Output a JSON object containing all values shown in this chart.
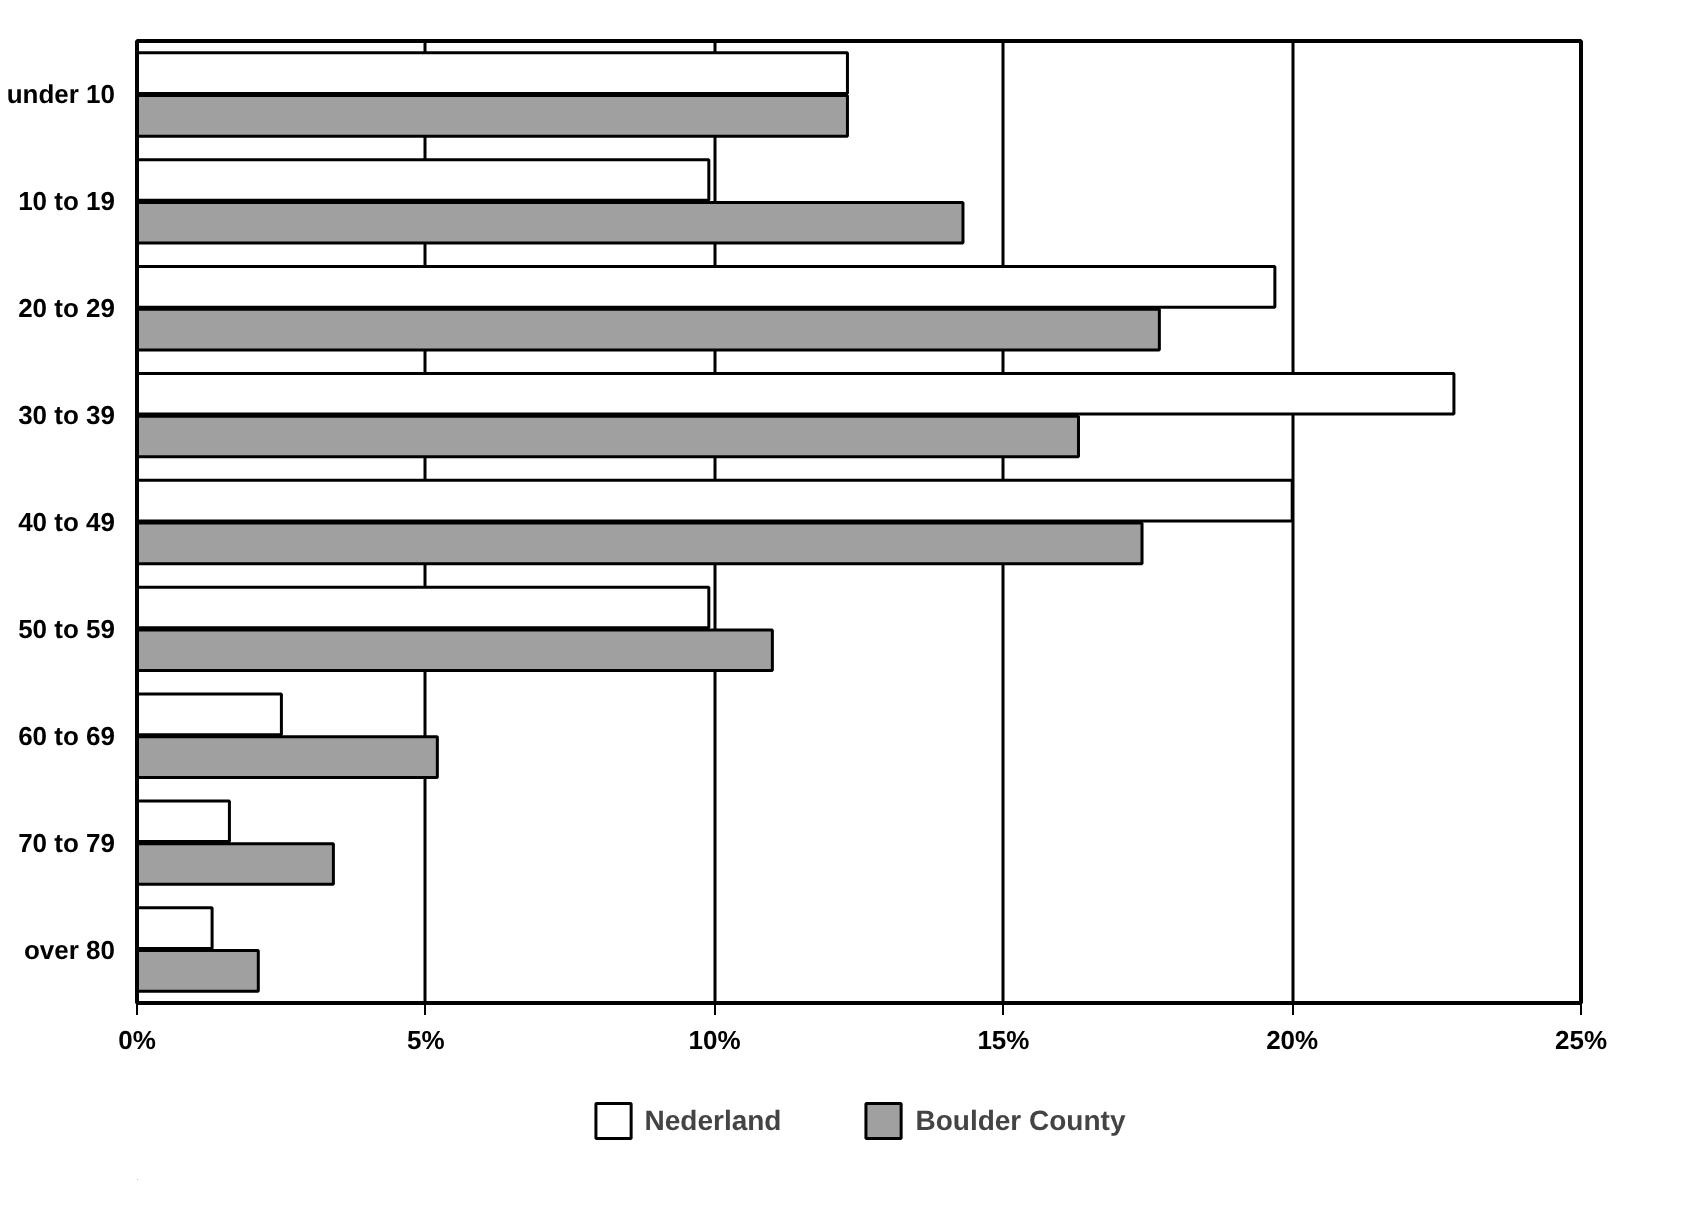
{
  "chart_data": {
    "type": "bar",
    "orientation": "horizontal",
    "categories": [
      "under 10",
      "10 to 19",
      "20 to 29",
      "30 to 39",
      "40 to 49",
      "50 to 59",
      "60 to 69",
      "70 to 79",
      "over 80"
    ],
    "series": [
      {
        "name": "Nederland",
        "color": "#ffffff",
        "values": [
          12.3,
          9.9,
          19.7,
          22.8,
          20.0,
          9.9,
          2.5,
          1.6,
          1.3
        ]
      },
      {
        "name": "Boulder County",
        "color": "#a0a0a0",
        "values": [
          12.3,
          14.3,
          17.7,
          16.3,
          17.4,
          11.0,
          5.2,
          3.4,
          2.1
        ]
      }
    ],
    "xlim": [
      0,
      25
    ],
    "xticks": [
      {
        "value": 0,
        "label": "0%"
      },
      {
        "value": 5,
        "label": "5%"
      },
      {
        "value": 10,
        "label": "10%"
      },
      {
        "value": 15,
        "label": "15%"
      },
      {
        "value": 20,
        "label": "20%"
      },
      {
        "value": 25,
        "label": "25%"
      }
    ],
    "grid": "x",
    "legend": "bottom"
  }
}
